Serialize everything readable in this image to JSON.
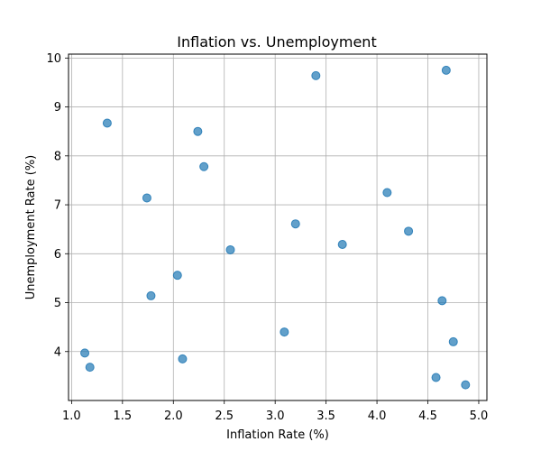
{
  "chart_data": {
    "type": "scatter",
    "title": "Inflation vs. Unemployment",
    "xlabel": "Inflation Rate (%)",
    "ylabel": "Unemployment Rate (%)",
    "xlim": [
      0.97,
      5.08
    ],
    "ylim": [
      3.0,
      10.08
    ],
    "xticks": [
      1.0,
      1.5,
      2.0,
      2.5,
      3.0,
      3.5,
      4.0,
      4.5,
      5.0
    ],
    "xtick_labels": [
      "1.0",
      "1.5",
      "2.0",
      "2.5",
      "3.0",
      "3.5",
      "4.0",
      "4.5",
      "5.0"
    ],
    "yticks": [
      4,
      5,
      6,
      7,
      8,
      9,
      10
    ],
    "ytick_labels": [
      "4",
      "5",
      "6",
      "7",
      "8",
      "9",
      "10"
    ],
    "grid": true,
    "point_color": "#1f77b4",
    "points": [
      {
        "x": 1.13,
        "y": 3.97
      },
      {
        "x": 1.18,
        "y": 3.68
      },
      {
        "x": 1.35,
        "y": 8.67
      },
      {
        "x": 1.74,
        "y": 7.14
      },
      {
        "x": 1.78,
        "y": 5.14
      },
      {
        "x": 2.04,
        "y": 5.56
      },
      {
        "x": 2.09,
        "y": 3.85
      },
      {
        "x": 2.24,
        "y": 8.5
      },
      {
        "x": 2.3,
        "y": 7.78
      },
      {
        "x": 2.56,
        "y": 6.08
      },
      {
        "x": 3.09,
        "y": 4.4
      },
      {
        "x": 3.2,
        "y": 6.61
      },
      {
        "x": 3.4,
        "y": 9.64
      },
      {
        "x": 3.66,
        "y": 6.19
      },
      {
        "x": 4.1,
        "y": 7.25
      },
      {
        "x": 4.31,
        "y": 6.46
      },
      {
        "x": 4.58,
        "y": 3.47
      },
      {
        "x": 4.64,
        "y": 5.04
      },
      {
        "x": 4.68,
        "y": 9.75
      },
      {
        "x": 4.75,
        "y": 4.2
      },
      {
        "x": 4.87,
        "y": 3.32
      }
    ]
  }
}
